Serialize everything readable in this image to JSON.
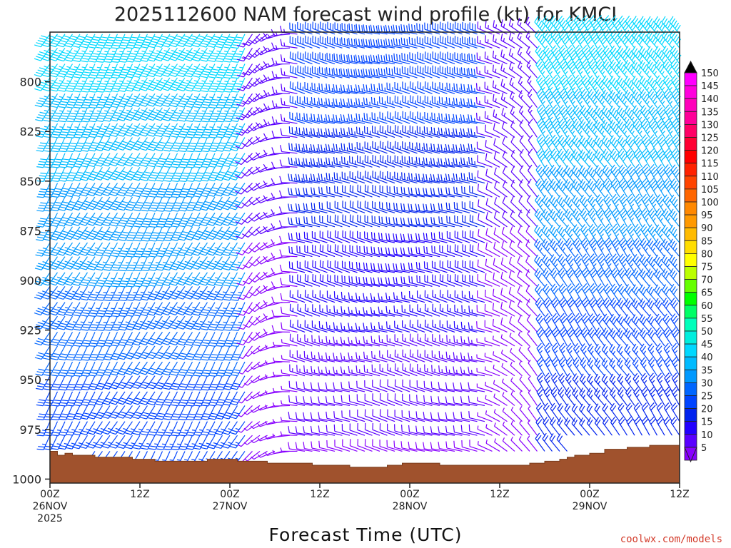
{
  "chart_data": {
    "type": "wind-barb-time-height",
    "title": "2025112600 NAM forecast wind profile (kt) for KMCI",
    "xlabel": "Forecast Time (UTC)",
    "ylabel": "",
    "units": "kt",
    "credit": "coolwx.com/models",
    "y_axis": {
      "min": 775,
      "max": 1002,
      "inverted": true,
      "ticks": [
        800,
        825,
        850,
        875,
        900,
        925,
        950,
        975,
        1000
      ]
    },
    "x_axis": {
      "range_hours": [
        0,
        84
      ],
      "ticks": [
        {
          "hour": 0,
          "lines": [
            "00Z",
            "26NOV",
            "2025"
          ]
        },
        {
          "hour": 12,
          "lines": [
            "12Z"
          ]
        },
        {
          "hour": 24,
          "lines": [
            "00Z",
            "27NOV"
          ]
        },
        {
          "hour": 36,
          "lines": [
            "12Z"
          ]
        },
        {
          "hour": 48,
          "lines": [
            "00Z",
            "28NOV"
          ]
        },
        {
          "hour": 60,
          "lines": [
            "12Z"
          ]
        },
        {
          "hour": 72,
          "lines": [
            "00Z",
            "29NOV"
          ]
        },
        {
          "hour": 84,
          "lines": [
            "12Z"
          ]
        }
      ]
    },
    "colorbar": {
      "levels": [
        5,
        10,
        15,
        20,
        25,
        30,
        35,
        40,
        45,
        50,
        55,
        60,
        65,
        70,
        75,
        80,
        85,
        90,
        95,
        100,
        105,
        110,
        115,
        120,
        125,
        130,
        135,
        140,
        145,
        150
      ],
      "colors": [
        "#8800ff",
        "#5a00ff",
        "#2200ff",
        "#0022ee",
        "#0044ff",
        "#0066ff",
        "#0099ff",
        "#00bbff",
        "#00d8ff",
        "#00eedd",
        "#00ffbb",
        "#00ff66",
        "#00ff00",
        "#66ff00",
        "#bbff00",
        "#ffff00",
        "#ffdd00",
        "#ffbb00",
        "#ff9900",
        "#ff8800",
        "#ff6600",
        "#ff4400",
        "#ff2200",
        "#ff0000",
        "#ff0033",
        "#ff0066",
        "#ff0099",
        "#ff00bb",
        "#ff00dd",
        "#ff00ff"
      ],
      "below_color": "#8800ff",
      "above_color": "#000000"
    },
    "grid": false,
    "surface_pressure_hpa": [
      {
        "hour": 0,
        "p": 986
      },
      {
        "hour": 1,
        "p": 988
      },
      {
        "hour": 2,
        "p": 987
      },
      {
        "hour": 3,
        "p": 988
      },
      {
        "hour": 6,
        "p": 989
      },
      {
        "hour": 11,
        "p": 990
      },
      {
        "hour": 14,
        "p": 991
      },
      {
        "hour": 21,
        "p": 990
      },
      {
        "hour": 25,
        "p": 991
      },
      {
        "hour": 29,
        "p": 992
      },
      {
        "hour": 35,
        "p": 993
      },
      {
        "hour": 40,
        "p": 994
      },
      {
        "hour": 45,
        "p": 993
      },
      {
        "hour": 47,
        "p": 992
      },
      {
        "hour": 52,
        "p": 993
      },
      {
        "hour": 57,
        "p": 993
      },
      {
        "hour": 61,
        "p": 993
      },
      {
        "hour": 64,
        "p": 992
      },
      {
        "hour": 66,
        "p": 991
      },
      {
        "hour": 68,
        "p": 990
      },
      {
        "hour": 69,
        "p": 989
      },
      {
        "hour": 70,
        "p": 988
      },
      {
        "hour": 72,
        "p": 987
      },
      {
        "hour": 74,
        "p": 985
      },
      {
        "hour": 77,
        "p": 984
      },
      {
        "hour": 80,
        "p": 983
      },
      {
        "hour": 84,
        "p": 983
      }
    ],
    "wind_field_summary": {
      "time_step_hours": 1,
      "pressure_levels_hpa": [
        776,
        783,
        791,
        798,
        806,
        813,
        821,
        828,
        836,
        843,
        851,
        858,
        866,
        873,
        881,
        888,
        896,
        903,
        911,
        918,
        926,
        933,
        941,
        948,
        956,
        963,
        971,
        978,
        986,
        993
      ],
      "regimes": [
        {
          "hours": [
            0,
            30
          ],
          "direction_deg": 210,
          "speed_kt_upper": 48,
          "speed_kt_lower": 24
        },
        {
          "hours": [
            30,
            62
          ],
          "direction_deg": 285,
          "speed_kt_upper": 30,
          "speed_kt_lower": 8
        },
        {
          "hours": [
            62,
            84
          ],
          "direction_deg": 325,
          "speed_kt_upper": 50,
          "speed_kt_lower": 18
        }
      ]
    }
  }
}
